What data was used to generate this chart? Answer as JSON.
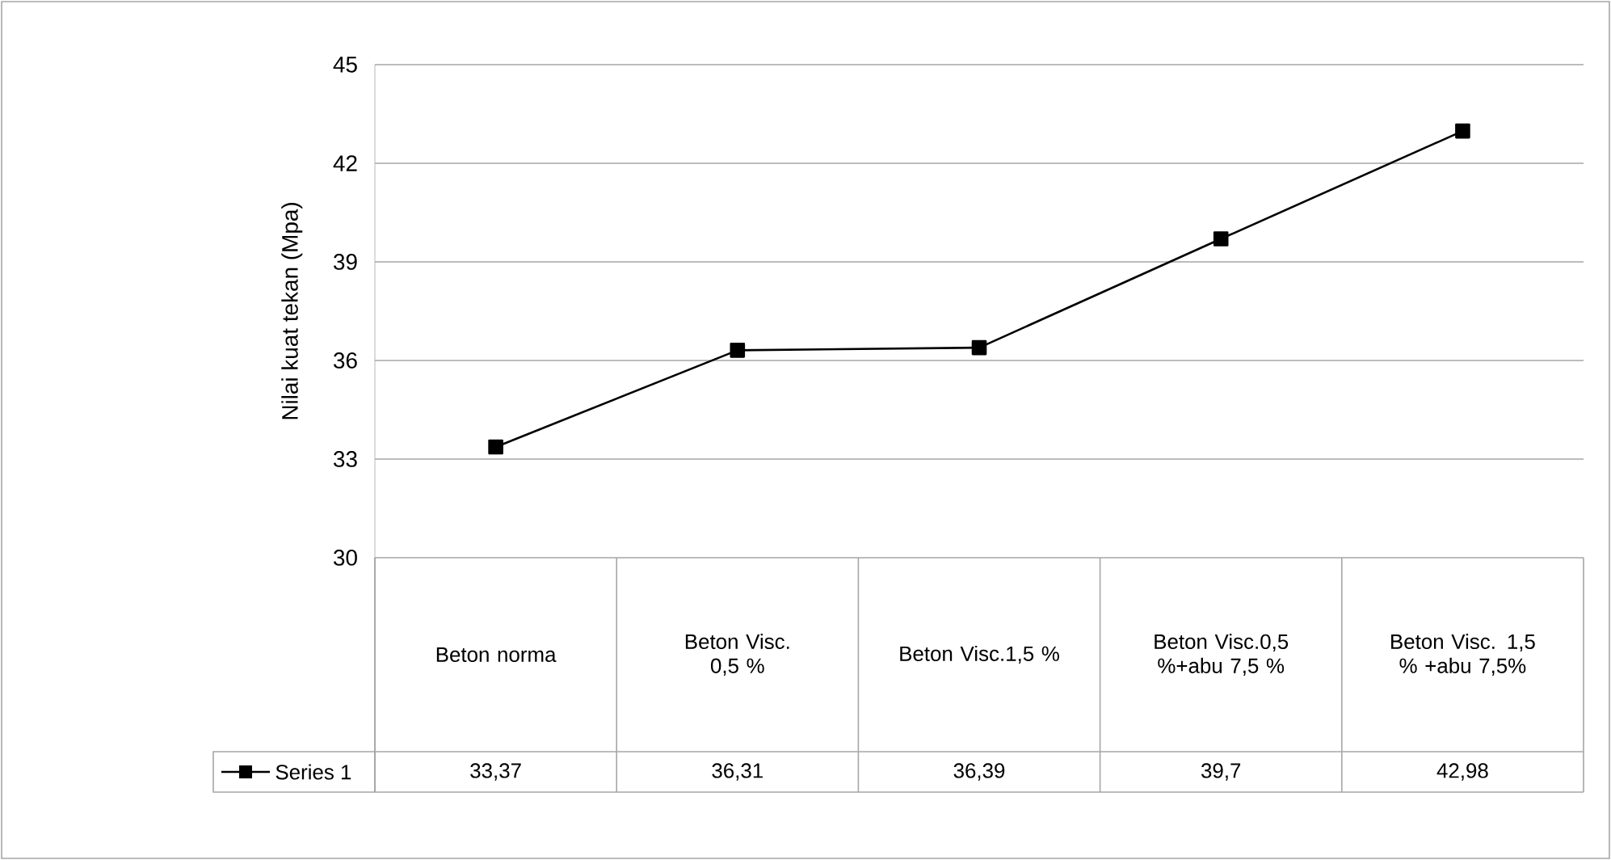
{
  "chart_data": {
    "type": "line",
    "ylabel": "Nilai kuat tekan (Mpa)",
    "categories": [
      "Beton norma",
      "Beton Visc. 0,5 %",
      "Beton Visc.1,5 %",
      "Beton Visc.0,5 %+abu 7,5 %",
      "Beton Visc. 1,5 % +abu 7,5%"
    ],
    "series": [
      {
        "name": "Series 1",
        "color": "#000000",
        "values": [
          33.37,
          36.31,
          36.39,
          39.7,
          42.98
        ],
        "value_labels": [
          "33,37",
          "36,31",
          "36,39",
          "39,7",
          "42,98"
        ]
      }
    ],
    "ylim": [
      30,
      45
    ],
    "yticks": [
      30,
      33,
      36,
      39,
      42,
      45
    ],
    "grid": "y",
    "marker": "square",
    "line_style": "solid",
    "legend": "bottom"
  }
}
